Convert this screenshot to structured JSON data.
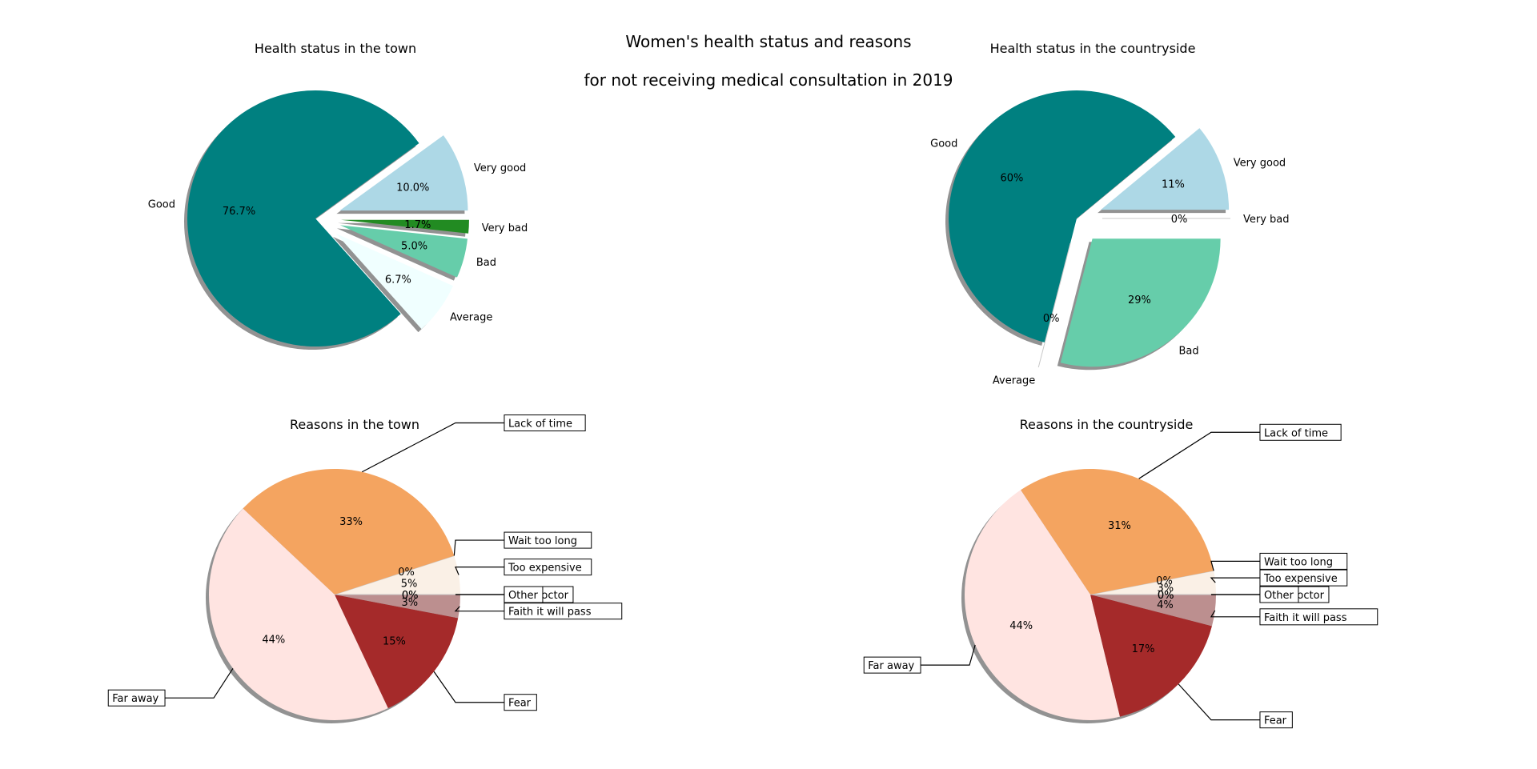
{
  "figure": {
    "title_line1": "Women's health status and reasons",
    "title_line2": "for not receiving medical consultation in 2019"
  },
  "chart_data": [
    {
      "type": "pie",
      "title": "Health status in the town",
      "labels": [
        "Very good",
        "Good",
        "Average",
        "Bad",
        "Very bad"
      ],
      "values": [
        10.0,
        76.7,
        6.7,
        5.0,
        1.7
      ],
      "autopct_labels": [
        "10.0%",
        "76.7%",
        "6.7%",
        "5.0%",
        "1.7%"
      ],
      "colors": [
        "#add8e6",
        "#008080",
        "#f0ffff",
        "#66cdaa",
        "#228b22"
      ],
      "explode": [
        0.2,
        0,
        0.2,
        0.2,
        0.2
      ],
      "start_angle": 0,
      "label_style": "plain",
      "shadow": true
    },
    {
      "type": "pie",
      "title": "Health status in the countryside",
      "labels": [
        "Very good",
        "Good",
        "Average",
        "Bad",
        "Very bad"
      ],
      "values": [
        11,
        60,
        0,
        29,
        0
      ],
      "autopct_labels": [
        "11%",
        "60%",
        "0%",
        "29%",
        "0%"
      ],
      "colors": [
        "#add8e6",
        "#008080",
        "#f0ffff",
        "#66cdaa",
        "#228b22"
      ],
      "explode": [
        0.2,
        0,
        0.2,
        0.2,
        0.2
      ],
      "start_angle": 0,
      "label_style": "plain",
      "shadow": true
    },
    {
      "type": "pie",
      "title": "Reasons in the town",
      "labels": [
        "Too expensive",
        "Wait too long",
        "Lack of time",
        "Far away",
        "Fear",
        "Faith it will pass",
        "Own doctor",
        "Other"
      ],
      "values": [
        5,
        0,
        33,
        44,
        15,
        3,
        0,
        0
      ],
      "autopct_labels": [
        "5%",
        "0%",
        "33%",
        "44%",
        "15%",
        "3%",
        "0%",
        "0%"
      ],
      "colors": [
        "#faf0e6",
        "#ffe4c4",
        "#f4a460",
        "#ffe4e1",
        "#a52a2a",
        "#bc8f8f",
        "#f5deb3",
        "#d2b48c"
      ],
      "start_angle": 0,
      "label_style": "boxed",
      "shadow": true
    },
    {
      "type": "pie",
      "title": "Reasons in the countryside",
      "labels": [
        "Too expensive",
        "Wait too long",
        "Lack of time",
        "Far away",
        "Fear",
        "Faith it will pass",
        "Own doctor",
        "Other"
      ],
      "values": [
        3,
        0,
        31,
        44,
        17,
        4,
        0,
        0
      ],
      "autopct_labels": [
        "3%",
        "0%",
        "31%",
        "44%",
        "17%",
        "4%",
        "0%",
        "0%"
      ],
      "colors": [
        "#faf0e6",
        "#ffe4c4",
        "#f4a460",
        "#ffe4e1",
        "#a52a2a",
        "#bc8f8f",
        "#f5deb3",
        "#d2b48c"
      ],
      "start_angle": 0,
      "label_style": "boxed",
      "shadow": true
    }
  ]
}
